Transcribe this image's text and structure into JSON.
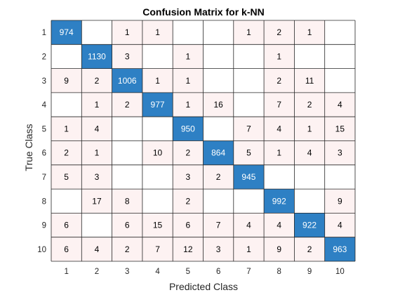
{
  "chart_data": {
    "type": "heatmap",
    "title": "Confusion Matrix for k-NN",
    "xlabel": "Predicted Class",
    "ylabel": "True Class",
    "row_labels": [
      "1",
      "2",
      "3",
      "4",
      "5",
      "6",
      "7",
      "8",
      "9",
      "10"
    ],
    "col_labels": [
      "1",
      "2",
      "3",
      "4",
      "5",
      "6",
      "7",
      "8",
      "9",
      "10"
    ],
    "matrix": [
      [
        974,
        0,
        1,
        1,
        0,
        0,
        1,
        2,
        1,
        0
      ],
      [
        0,
        1130,
        3,
        0,
        1,
        0,
        0,
        1,
        0,
        0
      ],
      [
        9,
        2,
        1006,
        1,
        1,
        0,
        0,
        2,
        11,
        0
      ],
      [
        0,
        1,
        2,
        977,
        1,
        16,
        0,
        7,
        2,
        4
      ],
      [
        1,
        4,
        0,
        0,
        950,
        0,
        7,
        4,
        1,
        15
      ],
      [
        2,
        1,
        0,
        10,
        2,
        864,
        5,
        1,
        4,
        3
      ],
      [
        5,
        3,
        0,
        0,
        3,
        2,
        945,
        0,
        0,
        0
      ],
      [
        0,
        17,
        8,
        0,
        2,
        0,
        0,
        992,
        0,
        9
      ],
      [
        6,
        0,
        6,
        15,
        6,
        7,
        4,
        4,
        922,
        4
      ],
      [
        6,
        4,
        2,
        7,
        12,
        3,
        1,
        9,
        2,
        963
      ]
    ],
    "colors": {
      "diagonal": "#2e80c4",
      "off_diagonal": "#fdf2f2",
      "diagonal_text": "#ffffff",
      "off_diagonal_text": "#000000",
      "grid": "#262626"
    }
  }
}
